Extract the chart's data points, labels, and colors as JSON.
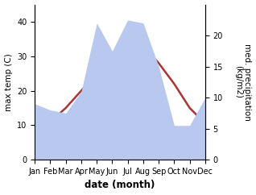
{
  "months": [
    "Jan",
    "Feb",
    "Mar",
    "Apr",
    "May",
    "Jun",
    "Jul",
    "Aug",
    "Sep",
    "Oct",
    "Nov",
    "Dec"
  ],
  "max_temp": [
    9.5,
    11.0,
    15.0,
    20.0,
    25.0,
    30.0,
    33.0,
    33.0,
    28.0,
    22.0,
    15.0,
    10.5
  ],
  "precipitation": [
    9.0,
    8.0,
    7.5,
    11.0,
    22.0,
    17.5,
    22.5,
    22.0,
    15.0,
    5.5,
    5.5,
    10.0
  ],
  "temp_color": "#aa3333",
  "precip_fill_color": "#b8c8ee",
  "ylabel_left": "max temp (C)",
  "ylabel_right": "med. precipitation\n(kg/m2)",
  "xlabel": "date (month)",
  "ylim_left": [
    0,
    45
  ],
  "ylim_right": [
    0,
    25
  ],
  "yticks_left": [
    0,
    10,
    20,
    30,
    40
  ],
  "yticks_right": [
    0,
    5,
    10,
    15,
    20
  ],
  "background_color": "#ffffff",
  "axis_fontsize": 7.5,
  "tick_fontsize": 7.0,
  "xlabel_fontsize": 8.5
}
